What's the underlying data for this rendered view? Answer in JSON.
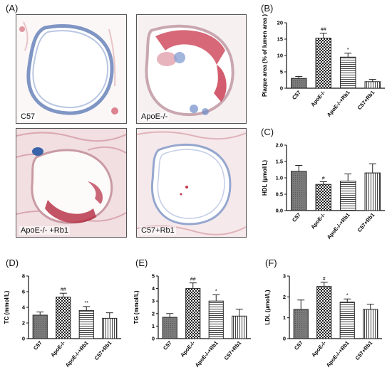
{
  "panels": {
    "a": "(A)",
    "b": "(B)",
    "c": "(C)",
    "d": "(D)",
    "e": "(E)",
    "f": "(F)"
  },
  "micro": {
    "c57": "C57",
    "apoe": "ApoE-/-",
    "apoe_rb1": "ApoE-/- +Rb1",
    "c57_rb1": "C57+Rb1"
  },
  "chart_data": [
    {
      "id": "b",
      "type": "bar",
      "categories": [
        "C57",
        "ApoE-/-",
        "ApoE-/-+Rb1",
        "C57+Rb1"
      ],
      "values": [
        3.0,
        15.3,
        9.5,
        2.0
      ],
      "errors": [
        0.6,
        1.5,
        1.2,
        0.7
      ],
      "annotations": [
        "",
        "##",
        "*",
        ""
      ],
      "ylabel": "Plaque area (% of lumen area )",
      "ylim": [
        0,
        20
      ],
      "yticks": [
        0,
        5,
        10,
        15,
        20
      ]
    },
    {
      "id": "c",
      "type": "bar",
      "categories": [
        "C57",
        "ApoE-/-",
        "ApoE-/-+Rb1",
        "C57+Rb1"
      ],
      "values": [
        1.2,
        0.8,
        0.9,
        1.15
      ],
      "errors": [
        0.18,
        0.08,
        0.22,
        0.28
      ],
      "annotations": [
        "",
        "#",
        "",
        ""
      ],
      "ylabel": "HDL (μmol/L)",
      "ylim": [
        0,
        2.0
      ],
      "yticks": [
        0.0,
        0.5,
        1.0,
        1.5,
        2.0
      ]
    },
    {
      "id": "d",
      "type": "bar",
      "categories": [
        "C57",
        "ApoE-/-",
        "ApoE-/-+Rb1",
        "C57+Rb1"
      ],
      "values": [
        3.0,
        5.3,
        3.6,
        2.6
      ],
      "errors": [
        0.4,
        0.5,
        0.5,
        0.7
      ],
      "annotations": [
        "",
        "##",
        "**",
        ""
      ],
      "ylabel": "TC (mmol/L)",
      "ylim": [
        0,
        8
      ],
      "yticks": [
        0,
        2,
        4,
        6,
        8
      ]
    },
    {
      "id": "e",
      "type": "bar",
      "categories": [
        "C57",
        "ApoE-/-",
        "ApoE-/-+Rb1",
        "C57+Rb1"
      ],
      "values": [
        1.7,
        4.0,
        3.0,
        1.8
      ],
      "errors": [
        0.3,
        0.45,
        0.5,
        0.55
      ],
      "annotations": [
        "",
        "##",
        "*",
        ""
      ],
      "ylabel": "TG (mmol/L)",
      "ylim": [
        0,
        5
      ],
      "yticks": [
        0,
        1,
        2,
        3,
        4,
        5
      ]
    },
    {
      "id": "f",
      "type": "bar",
      "categories": [
        "C57",
        "ApoE-/-",
        "ApoE-/-+Rb1",
        "C57+Rb1"
      ],
      "values": [
        1.4,
        2.5,
        1.75,
        1.4
      ],
      "errors": [
        0.45,
        0.2,
        0.15,
        0.25
      ],
      "annotations": [
        "",
        "#",
        "*",
        ""
      ],
      "ylabel": "LDL (μmol/L)",
      "ylim": [
        0,
        3
      ],
      "yticks": [
        0,
        1,
        2,
        3
      ]
    }
  ],
  "colors": {
    "bar_dark": "#777777",
    "stroke": "#222222",
    "stain_red": "#c8354a",
    "stain_blue": "#3b63a8"
  }
}
